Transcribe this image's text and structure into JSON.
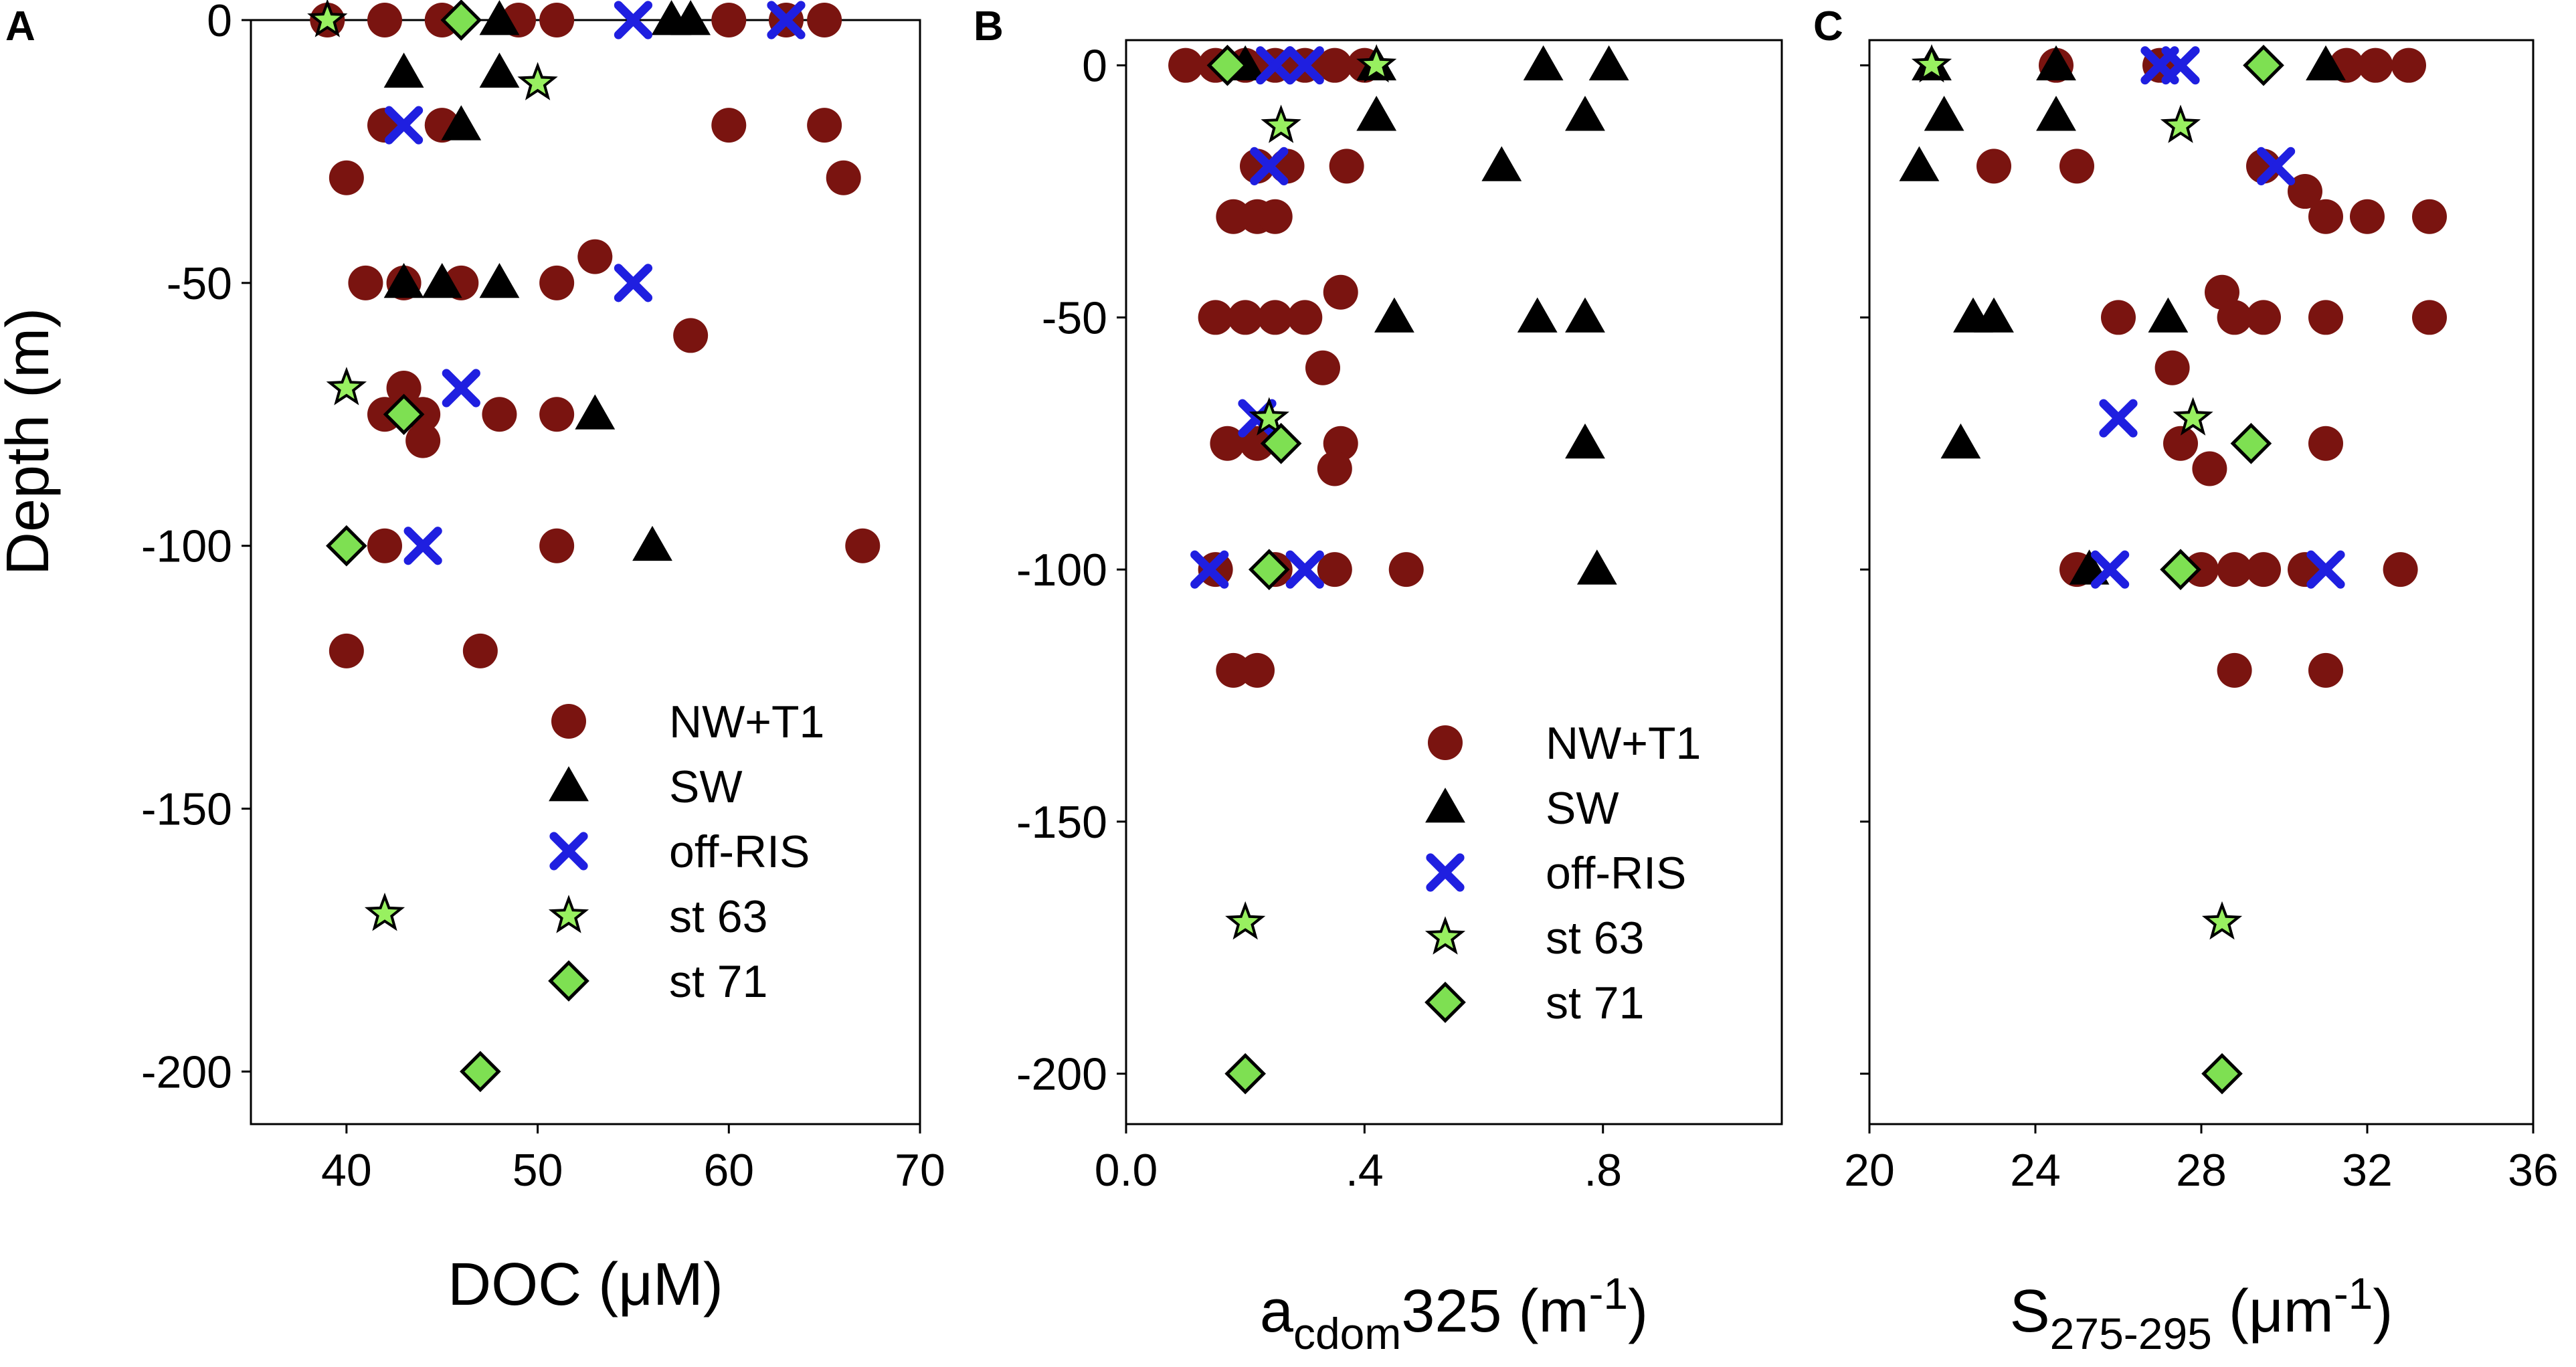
{
  "figure": {
    "ylabel": "Depth (m)",
    "colors": {
      "NW+T1": "#7a1410",
      "SW": "#000000",
      "off-RIS": "#1f1fe0",
      "st 63": "#98f060",
      "st 71": "#7ee052"
    }
  },
  "chart_data": [
    {
      "type": "scatter",
      "panel": "A",
      "xlabel": "DOC (μM)",
      "ylabel": "Depth (m)",
      "xlim": [
        35,
        70
      ],
      "ylim": [
        -210,
        0
      ],
      "xticks": [
        40,
        50,
        60,
        70
      ],
      "xtick_labels": [
        "40",
        "50",
        "60",
        "70"
      ],
      "yticks": [
        0,
        -50,
        -100,
        -150,
        -200
      ],
      "ytick_labels": [
        "0",
        "-50",
        "-100",
        "-150",
        "-200"
      ],
      "legend": [
        "NW+T1",
        "SW",
        "off-RIS",
        "st 63",
        "st 71"
      ],
      "series": [
        {
          "name": "NW+T1",
          "marker": "circle",
          "points": [
            [
              39,
              0
            ],
            [
              42,
              0
            ],
            [
              45,
              0
            ],
            [
              49,
              0
            ],
            [
              51,
              0
            ],
            [
              60,
              0
            ],
            [
              63,
              0
            ],
            [
              65,
              0
            ],
            [
              42,
              -20
            ],
            [
              45,
              -20
            ],
            [
              60,
              -20
            ],
            [
              65,
              -20
            ],
            [
              40,
              -30
            ],
            [
              66,
              -30
            ],
            [
              41,
              -50
            ],
            [
              43,
              -50
            ],
            [
              46,
              -50
            ],
            [
              51,
              -50
            ],
            [
              53,
              -45
            ],
            [
              58,
              -60
            ],
            [
              42,
              -75
            ],
            [
              44,
              -75
            ],
            [
              48,
              -75
            ],
            [
              51,
              -75
            ],
            [
              43,
              -70
            ],
            [
              44,
              -80
            ],
            [
              42,
              -100
            ],
            [
              51,
              -100
            ],
            [
              67,
              -100
            ],
            [
              40,
              -120
            ],
            [
              47,
              -120
            ]
          ]
        },
        {
          "name": "SW",
          "marker": "triangle",
          "points": [
            [
              48,
              0
            ],
            [
              57,
              0
            ],
            [
              58,
              0
            ],
            [
              43,
              -10
            ],
            [
              48,
              -10
            ],
            [
              46,
              -20
            ],
            [
              43,
              -50
            ],
            [
              45,
              -50
            ],
            [
              48,
              -50
            ],
            [
              53,
              -75
            ],
            [
              56,
              -100
            ]
          ]
        },
        {
          "name": "off-RIS",
          "marker": "x",
          "points": [
            [
              55,
              0
            ],
            [
              63,
              0
            ],
            [
              43,
              -20
            ],
            [
              55,
              -50
            ],
            [
              46,
              -70
            ],
            [
              44,
              -100
            ]
          ]
        },
        {
          "name": "st 63",
          "marker": "star",
          "points": [
            [
              39,
              0
            ],
            [
              50,
              -12
            ],
            [
              40,
              -70
            ],
            [
              42,
              -170
            ]
          ]
        },
        {
          "name": "st 71",
          "marker": "diamond",
          "points": [
            [
              46,
              0
            ],
            [
              43,
              -75
            ],
            [
              40,
              -100
            ],
            [
              47,
              -200
            ]
          ]
        }
      ]
    },
    {
      "type": "scatter",
      "panel": "B",
      "xlabel": "acdom325 (m-1)",
      "xlabel_parts": {
        "main": "a",
        "sub": "cdom",
        "mid": "325 (m",
        "sup": "-1",
        "end": ")"
      },
      "xlim": [
        0,
        1.1
      ],
      "ylim": [
        -210,
        5
      ],
      "xticks": [
        0,
        0.4,
        0.8
      ],
      "xtick_labels": [
        "0.0",
        ".4",
        ".8"
      ],
      "yticks": [
        0,
        -50,
        -100,
        -150,
        -200
      ],
      "ytick_labels": [
        "0",
        "-50",
        "-100",
        "-150",
        "-200"
      ],
      "legend": [
        "NW+T1",
        "SW",
        "off-RIS",
        "st 63",
        "st 71"
      ],
      "series": [
        {
          "name": "NW+T1",
          "marker": "circle",
          "points": [
            [
              0.1,
              0
            ],
            [
              0.15,
              0
            ],
            [
              0.2,
              0
            ],
            [
              0.25,
              0
            ],
            [
              0.3,
              0
            ],
            [
              0.35,
              0
            ],
            [
              0.4,
              0
            ],
            [
              0.22,
              -20
            ],
            [
              0.27,
              -20
            ],
            [
              0.37,
              -20
            ],
            [
              0.18,
              -30
            ],
            [
              0.22,
              -30
            ],
            [
              0.25,
              -30
            ],
            [
              0.15,
              -50
            ],
            [
              0.2,
              -50
            ],
            [
              0.25,
              -50
            ],
            [
              0.3,
              -50
            ],
            [
              0.36,
              -45
            ],
            [
              0.33,
              -60
            ],
            [
              0.17,
              -75
            ],
            [
              0.22,
              -75
            ],
            [
              0.36,
              -75
            ],
            [
              0.35,
              -80
            ],
            [
              0.15,
              -100
            ],
            [
              0.25,
              -100
            ],
            [
              0.35,
              -100
            ],
            [
              0.47,
              -100
            ],
            [
              0.18,
              -120
            ],
            [
              0.22,
              -120
            ]
          ]
        },
        {
          "name": "SW",
          "marker": "triangle",
          "points": [
            [
              0.2,
              0
            ],
            [
              0.42,
              0
            ],
            [
              0.7,
              0
            ],
            [
              0.81,
              0
            ],
            [
              0.42,
              -10
            ],
            [
              0.77,
              -10
            ],
            [
              0.63,
              -20
            ],
            [
              0.45,
              -50
            ],
            [
              0.69,
              -50
            ],
            [
              0.77,
              -50
            ],
            [
              0.77,
              -75
            ],
            [
              0.79,
              -100
            ]
          ]
        },
        {
          "name": "off-RIS",
          "marker": "x",
          "points": [
            [
              0.25,
              0
            ],
            [
              0.3,
              0
            ],
            [
              0.24,
              -20
            ],
            [
              0.22,
              -70
            ],
            [
              0.14,
              -100
            ],
            [
              0.3,
              -100
            ]
          ]
        },
        {
          "name": "st 63",
          "marker": "star",
          "points": [
            [
              0.42,
              0
            ],
            [
              0.26,
              -12
            ],
            [
              0.24,
              -70
            ],
            [
              0.2,
              -170
            ]
          ]
        },
        {
          "name": "st 71",
          "marker": "diamond",
          "points": [
            [
              0.17,
              0
            ],
            [
              0.26,
              -75
            ],
            [
              0.24,
              -100
            ],
            [
              0.2,
              -200
            ]
          ]
        }
      ]
    },
    {
      "type": "scatter",
      "panel": "C",
      "xlabel": "S275-295 (μm-1)",
      "xlabel_parts": {
        "main": "S",
        "sub": "275-295",
        "mid": " (μm",
        "sup": "-1",
        "end": ")"
      },
      "xlim": [
        20,
        36
      ],
      "ylim": [
        -210,
        5
      ],
      "xticks": [
        20,
        24,
        28,
        32,
        36
      ],
      "xtick_labels": [
        "20",
        "24",
        "28",
        "32",
        "36"
      ],
      "yticks": [
        0,
        -50,
        -100,
        -150,
        -200
      ],
      "ytick_labels": [
        "",
        "",
        "",
        "",
        ""
      ],
      "legend": [],
      "series": [
        {
          "name": "NW+T1",
          "marker": "circle",
          "points": [
            [
              24.5,
              0
            ],
            [
              27,
              0
            ],
            [
              31.5,
              0
            ],
            [
              32.2,
              0
            ],
            [
              33,
              0
            ],
            [
              23,
              -20
            ],
            [
              25,
              -20
            ],
            [
              29.5,
              -20
            ],
            [
              30.5,
              -25
            ],
            [
              31,
              -30
            ],
            [
              32,
              -30
            ],
            [
              33.5,
              -30
            ],
            [
              26,
              -50
            ],
            [
              28.5,
              -45
            ],
            [
              28.8,
              -50
            ],
            [
              29.5,
              -50
            ],
            [
              31,
              -50
            ],
            [
              33.5,
              -50
            ],
            [
              27.3,
              -60
            ],
            [
              27.5,
              -75
            ],
            [
              31,
              -75
            ],
            [
              28.2,
              -80
            ],
            [
              25,
              -100
            ],
            [
              28,
              -100
            ],
            [
              28.8,
              -100
            ],
            [
              29.5,
              -100
            ],
            [
              30.5,
              -100
            ],
            [
              32.8,
              -100
            ],
            [
              28.8,
              -120
            ],
            [
              31,
              -120
            ]
          ]
        },
        {
          "name": "SW",
          "marker": "triangle",
          "points": [
            [
              21.5,
              0
            ],
            [
              24.5,
              0
            ],
            [
              31,
              0
            ],
            [
              21.8,
              -10
            ],
            [
              24.5,
              -10
            ],
            [
              21.2,
              -20
            ],
            [
              22.5,
              -50
            ],
            [
              23,
              -50
            ],
            [
              27.2,
              -50
            ],
            [
              22.2,
              -75
            ],
            [
              25.3,
              -100
            ]
          ]
        },
        {
          "name": "off-RIS",
          "marker": "x",
          "points": [
            [
              27,
              0
            ],
            [
              27.5,
              0
            ],
            [
              29.8,
              -20
            ],
            [
              26,
              -70
            ],
            [
              25.8,
              -100
            ],
            [
              31,
              -100
            ]
          ]
        },
        {
          "name": "st 63",
          "marker": "star",
          "points": [
            [
              21.5,
              0
            ],
            [
              27.5,
              -12
            ],
            [
              27.8,
              -70
            ],
            [
              28.5,
              -170
            ]
          ]
        },
        {
          "name": "st 71",
          "marker": "diamond",
          "points": [
            [
              29.5,
              0
            ],
            [
              29.2,
              -75
            ],
            [
              27.5,
              -100
            ],
            [
              28.5,
              -200
            ]
          ]
        }
      ]
    }
  ]
}
